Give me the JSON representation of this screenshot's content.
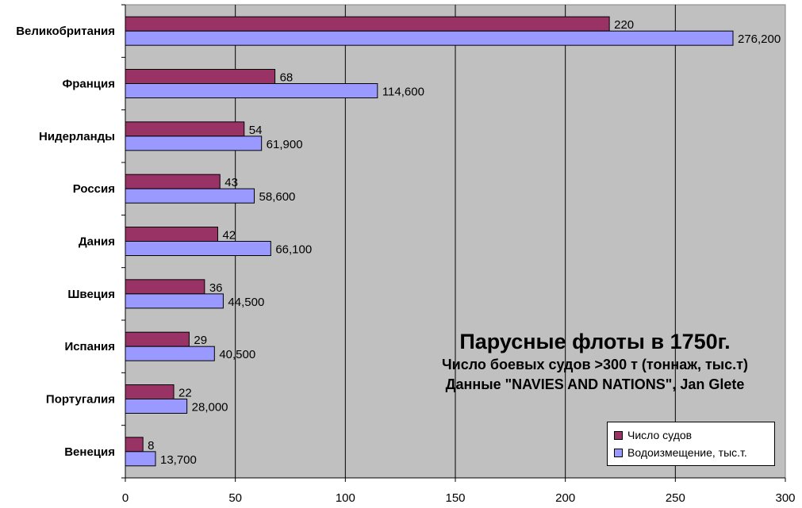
{
  "chart_data": {
    "type": "bar",
    "orientation": "horizontal",
    "title": "Парусные флоты в 1750г.",
    "subtitle_lines": [
      "Число боевых судов >300 т (тоннаж, тыс.т)",
      "Данные \"NAVIES AND NATIONS\", Jan Glete"
    ],
    "categories": [
      "Великобритания",
      "Франция",
      "Нидерланды",
      "Россия",
      "Дания",
      "Швеция",
      "Испания",
      "Португалия",
      "Венеция"
    ],
    "series": [
      {
        "name": "Число судов",
        "color": "#993366",
        "values": [
          220,
          68,
          54,
          43,
          42,
          36,
          29,
          22,
          8
        ],
        "labels": [
          "220",
          "68",
          "54",
          "43",
          "42",
          "36",
          "29",
          "22",
          "8"
        ]
      },
      {
        "name": "Водоизмещение, тыс.т.",
        "color": "#9999FF",
        "values": [
          276.2,
          114.6,
          61.9,
          58.6,
          66.1,
          44.5,
          40.5,
          28.0,
          13.7
        ],
        "labels": [
          "276,200",
          "114,600",
          "61,900",
          "58,600",
          "66,100",
          "44,500",
          "40,500",
          "28,000",
          "13,700"
        ]
      }
    ],
    "xlim": [
      0,
      300
    ],
    "xticks": [
      0,
      50,
      100,
      150,
      200,
      250,
      300
    ],
    "grid": true,
    "plot_background": "#C0C0C0",
    "legend_position": "bottom-right"
  }
}
